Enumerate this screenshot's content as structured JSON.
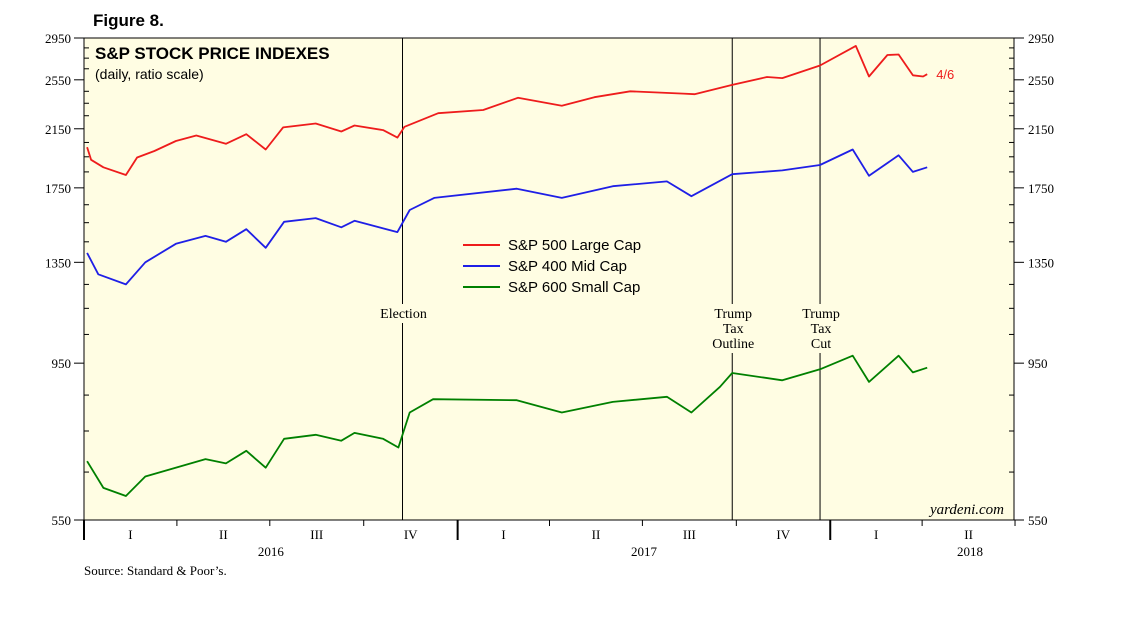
{
  "figure_label": "Figure 8.",
  "chart_data": {
    "type": "line",
    "title": "S&P STOCK PRICE INDEXES",
    "subtitle": "(daily, ratio scale)",
    "y_scale": "log",
    "ylim": [
      550,
      2950
    ],
    "yticks": [
      550,
      950,
      1350,
      1750,
      2150,
      2550,
      2950
    ],
    "ytick_labels": [
      "550",
      "950",
      "1350",
      "1750",
      "2150",
      "2550",
      "2950"
    ],
    "x_range": [
      "2016-01-01",
      "2018-06-30"
    ],
    "quarter_labels": [
      "I",
      "II",
      "III",
      "IV",
      "I",
      "II",
      "III",
      "IV",
      "I",
      "II"
    ],
    "year_labels": [
      "2016",
      "2017",
      "2018"
    ],
    "legend": {
      "position": "center",
      "entries": [
        "S&P 500 Large Cap",
        "S&P 400 Mid Cap",
        "S&P 600 Small Cap"
      ]
    },
    "end_label": "4/6",
    "events": [
      {
        "date": "2016-11-08",
        "label": [
          "Election"
        ]
      },
      {
        "date": "2017-09-27",
        "label": [
          "Trump",
          "Tax",
          "Outline"
        ]
      },
      {
        "date": "2017-12-22",
        "label": [
          "Trump",
          "Tax",
          "Cut"
        ]
      }
    ],
    "series": [
      {
        "name": "S&P 500 Large Cap",
        "color": "#ee1c1c",
        "points": [
          [
            "2016-01-04",
            2016
          ],
          [
            "2016-01-08",
            1930
          ],
          [
            "2016-01-20",
            1880
          ],
          [
            "2016-02-11",
            1830
          ],
          [
            "2016-02-22",
            1945
          ],
          [
            "2016-03-10",
            1990
          ],
          [
            "2016-03-31",
            2060
          ],
          [
            "2016-04-20",
            2100
          ],
          [
            "2016-05-19",
            2040
          ],
          [
            "2016-06-08",
            2110
          ],
          [
            "2016-06-27",
            2000
          ],
          [
            "2016-07-14",
            2160
          ],
          [
            "2016-08-15",
            2190
          ],
          [
            "2016-09-09",
            2130
          ],
          [
            "2016-09-22",
            2175
          ],
          [
            "2016-10-20",
            2140
          ],
          [
            "2016-11-03",
            2085
          ],
          [
            "2016-11-10",
            2165
          ],
          [
            "2016-12-13",
            2270
          ],
          [
            "2017-01-26",
            2295
          ],
          [
            "2017-03-01",
            2395
          ],
          [
            "2017-04-13",
            2330
          ],
          [
            "2017-05-15",
            2400
          ],
          [
            "2017-06-19",
            2450
          ],
          [
            "2017-08-10",
            2430
          ],
          [
            "2017-08-21",
            2425
          ],
          [
            "2017-09-27",
            2505
          ],
          [
            "2017-10-31",
            2575
          ],
          [
            "2017-11-15",
            2565
          ],
          [
            "2017-12-22",
            2680
          ],
          [
            "2018-01-26",
            2870
          ],
          [
            "2018-02-08",
            2580
          ],
          [
            "2018-02-26",
            2780
          ],
          [
            "2018-03-09",
            2785
          ],
          [
            "2018-03-23",
            2590
          ],
          [
            "2018-04-02",
            2580
          ],
          [
            "2018-04-06",
            2600
          ]
        ]
      },
      {
        "name": "S&P 400 Mid Cap",
        "color": "#1f1fe6",
        "points": [
          [
            "2016-01-04",
            1395
          ],
          [
            "2016-01-15",
            1295
          ],
          [
            "2016-02-11",
            1250
          ],
          [
            "2016-03-01",
            1350
          ],
          [
            "2016-03-31",
            1440
          ],
          [
            "2016-04-29",
            1480
          ],
          [
            "2016-05-19",
            1450
          ],
          [
            "2016-06-08",
            1515
          ],
          [
            "2016-06-27",
            1420
          ],
          [
            "2016-07-15",
            1555
          ],
          [
            "2016-08-15",
            1575
          ],
          [
            "2016-09-09",
            1525
          ],
          [
            "2016-09-22",
            1560
          ],
          [
            "2016-11-03",
            1500
          ],
          [
            "2016-11-15",
            1620
          ],
          [
            "2016-12-09",
            1690
          ],
          [
            "2017-02-28",
            1745
          ],
          [
            "2017-04-13",
            1690
          ],
          [
            "2017-06-02",
            1760
          ],
          [
            "2017-07-25",
            1790
          ],
          [
            "2017-08-18",
            1700
          ],
          [
            "2017-09-27",
            1835
          ],
          [
            "2017-11-15",
            1860
          ],
          [
            "2017-12-22",
            1895
          ],
          [
            "2018-01-23",
            2000
          ],
          [
            "2018-02-08",
            1825
          ],
          [
            "2018-03-09",
            1960
          ],
          [
            "2018-03-23",
            1850
          ],
          [
            "2018-04-06",
            1880
          ]
        ]
      },
      {
        "name": "S&P 600 Small Cap",
        "color": "#008000",
        "points": [
          [
            "2016-01-04",
            675
          ],
          [
            "2016-01-20",
            615
          ],
          [
            "2016-02-11",
            598
          ],
          [
            "2016-03-01",
            640
          ],
          [
            "2016-04-29",
            680
          ],
          [
            "2016-05-19",
            670
          ],
          [
            "2016-06-08",
            700
          ],
          [
            "2016-06-27",
            660
          ],
          [
            "2016-07-15",
            730
          ],
          [
            "2016-08-15",
            740
          ],
          [
            "2016-09-09",
            725
          ],
          [
            "2016-09-22",
            745
          ],
          [
            "2016-10-20",
            730
          ],
          [
            "2016-11-04",
            708
          ],
          [
            "2016-11-15",
            800
          ],
          [
            "2016-12-08",
            838
          ],
          [
            "2017-02-28",
            835
          ],
          [
            "2017-04-13",
            800
          ],
          [
            "2017-06-02",
            830
          ],
          [
            "2017-07-25",
            845
          ],
          [
            "2017-08-18",
            800
          ],
          [
            "2017-09-15",
            875
          ],
          [
            "2017-09-27",
            918
          ],
          [
            "2017-11-15",
            895
          ],
          [
            "2017-12-22",
            930
          ],
          [
            "2018-01-23",
            975
          ],
          [
            "2018-02-08",
            890
          ],
          [
            "2018-03-09",
            975
          ],
          [
            "2018-03-23",
            920
          ],
          [
            "2018-04-06",
            935
          ]
        ]
      }
    ]
  },
  "watermark": "yardeni.com",
  "source": "Source: Standard & Poor’s."
}
